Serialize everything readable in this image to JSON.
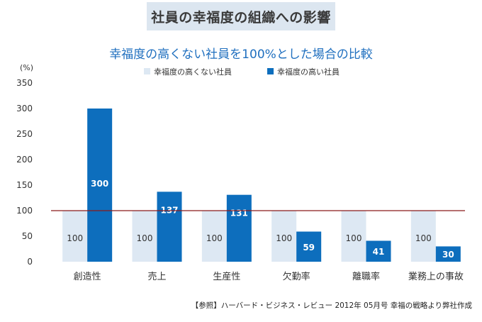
{
  "title": "社員の幸福度の組織への影響",
  "footnote": "【参照】ハーバード・ビジネス・レビュー 2012年 05月号 幸福の戦略より弊社作成",
  "colors": {
    "baseline_bar": "#dde8f3",
    "happy_bar": "#0d6ebd",
    "reference_line": "#8b1a1a",
    "axis_text": "#333333",
    "happy_label": "#ffffff",
    "base_label": "#333333"
  },
  "chart_data": {
    "type": "bar",
    "title": "幸福度の高くない社員を100%とした場合の比較",
    "ylabel": "(%)",
    "xlabel": "",
    "ylim": [
      0,
      350
    ],
    "yticks": [
      0,
      50,
      100,
      150,
      200,
      250,
      300,
      350
    ],
    "categories": [
      "創造性",
      "売上",
      "生産性",
      "欠勤率",
      "離職率",
      "業務上の事故"
    ],
    "series": [
      {
        "name": "幸福度の高くない社員",
        "values": [
          100,
          100,
          100,
          100,
          100,
          100
        ]
      },
      {
        "name": "幸福度の高い社員",
        "values": [
          300,
          137,
          131,
          59,
          41,
          30
        ]
      }
    ],
    "reference_line": 100,
    "legend_position": "top"
  }
}
